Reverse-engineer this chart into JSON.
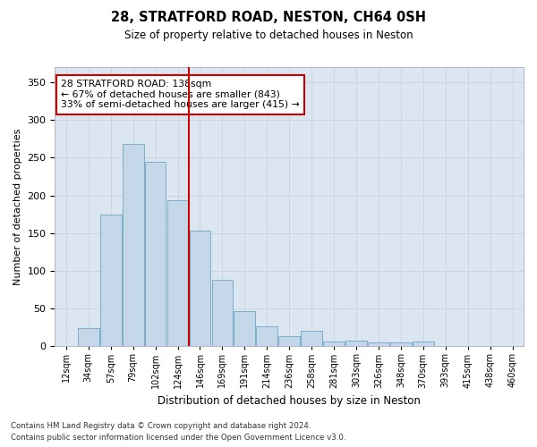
{
  "title": "28, STRATFORD ROAD, NESTON, CH64 0SH",
  "subtitle": "Size of property relative to detached houses in Neston",
  "xlabel": "Distribution of detached houses by size in Neston",
  "ylabel": "Number of detached properties",
  "categories": [
    "12sqm",
    "34sqm",
    "57sqm",
    "79sqm",
    "102sqm",
    "124sqm",
    "146sqm",
    "169sqm",
    "191sqm",
    "214sqm",
    "236sqm",
    "258sqm",
    "281sqm",
    "303sqm",
    "326sqm",
    "348sqm",
    "370sqm",
    "393sqm",
    "415sqm",
    "438sqm",
    "460sqm"
  ],
  "values": [
    1,
    24,
    175,
    268,
    244,
    193,
    153,
    88,
    47,
    26,
    13,
    21,
    6,
    8,
    5,
    5,
    6,
    1,
    0,
    0,
    0
  ],
  "bar_color": "#c5d8ea",
  "bar_edge_color": "#7aaec8",
  "vline_index": 5.5,
  "vline_color": "#cc0000",
  "annotation_text": "28 STRATFORD ROAD: 138sqm\n← 67% of detached houses are smaller (843)\n33% of semi-detached houses are larger (415) →",
  "annotation_box_facecolor": "#ffffff",
  "annotation_box_edgecolor": "#cc0000",
  "grid_color": "#ccd4e0",
  "background_color": "#dce6f0",
  "ylim": [
    0,
    370
  ],
  "yticks": [
    0,
    50,
    100,
    150,
    200,
    250,
    300,
    350
  ],
  "footnote1": "Contains HM Land Registry data © Crown copyright and database right 2024.",
  "footnote2": "Contains public sector information licensed under the Open Government Licence v3.0."
}
